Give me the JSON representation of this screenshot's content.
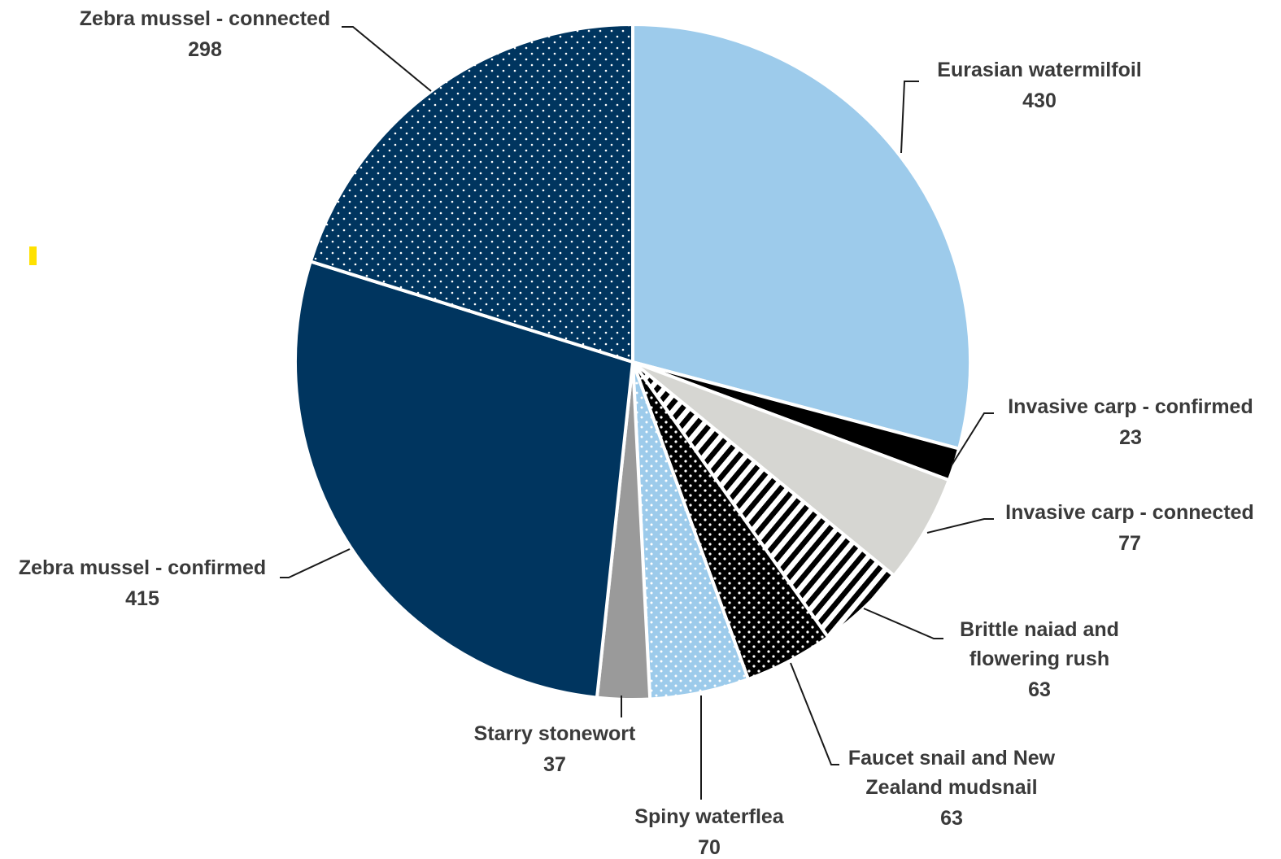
{
  "chart_data": {
    "type": "pie",
    "title": "",
    "slices": [
      {
        "label": "Eurasian watermilfoil",
        "value": 430,
        "color": "#9dcbeb",
        "pattern": "solid"
      },
      {
        "label": "Invasive carp - confirmed",
        "value": 23,
        "color": "#000000",
        "pattern": "solid"
      },
      {
        "label": "Invasive carp - connected",
        "value": 77,
        "color": "#d6d6d2",
        "pattern": "solid"
      },
      {
        "label": "Brittle naiad and flowering rush",
        "value": 63,
        "color": "#000000",
        "pattern": "diagonal-stripes-on-white"
      },
      {
        "label": "Faucet snail and New Zealand mudsnail",
        "value": 63,
        "color": "#000000",
        "pattern": "white-dots-on-black"
      },
      {
        "label": "Spiny waterflea",
        "value": 70,
        "color": "#9dcbeb",
        "pattern": "white-dots-on-light-blue"
      },
      {
        "label": "Starry stonewort",
        "value": 37,
        "color": "#9a9a9a",
        "pattern": "solid"
      },
      {
        "label": "Zebra mussel - confirmed",
        "value": 415,
        "color": "#00355f",
        "pattern": "solid"
      },
      {
        "label": "Zebra mussel - connected",
        "value": 298,
        "color": "#00355f",
        "pattern": "white-dots-on-navy"
      }
    ],
    "start_angle": "12 o'clock",
    "direction": "clockwise",
    "legend": "none",
    "accent_marker_color": "#ffe100"
  }
}
